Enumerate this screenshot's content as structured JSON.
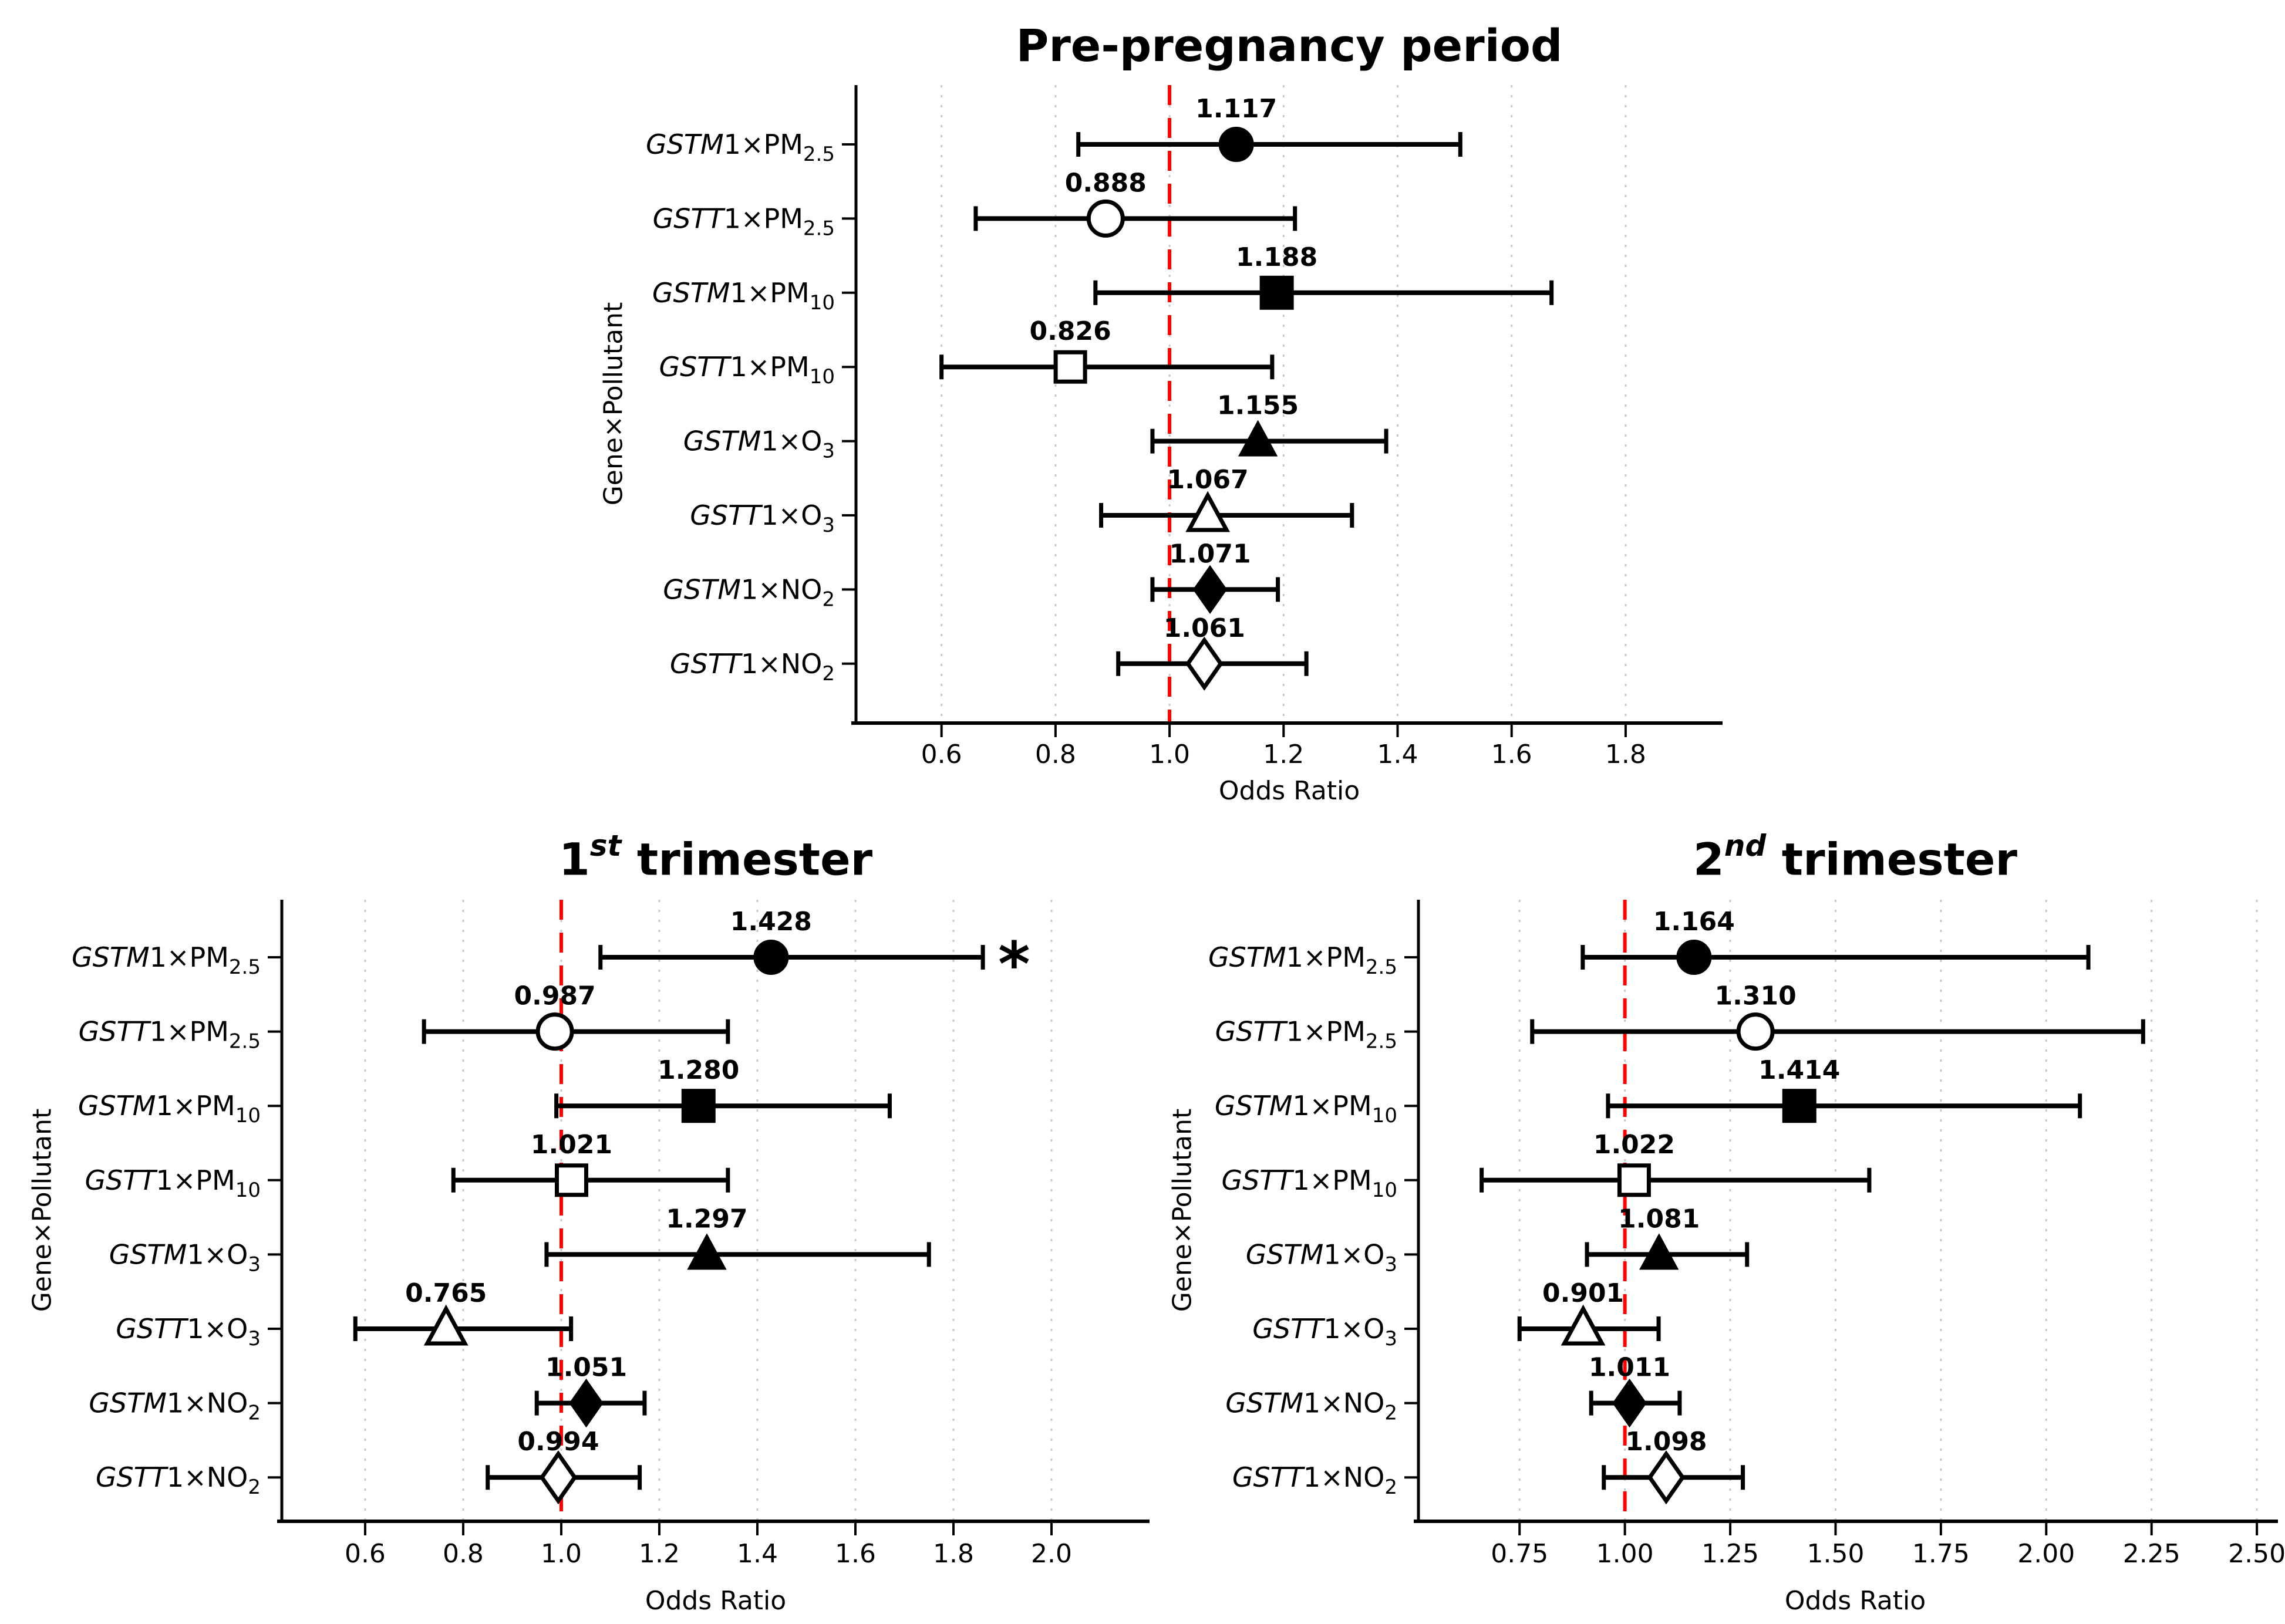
{
  "figure": {
    "background": "#ffffff",
    "text_color": "#000000",
    "accent_red": "#ff0000",
    "grid_color": "#c9c9c9",
    "marker_color": "#000000"
  },
  "row_labels": [
    {
      "it": "GSTM",
      "mid": "1×PM",
      "sub": "2.5"
    },
    {
      "it": "GSTT",
      "mid": "1×PM",
      "sub": "2.5"
    },
    {
      "it": "GSTM",
      "mid": "1×PM",
      "sub": "10"
    },
    {
      "it": "GSTT",
      "mid": "1×PM",
      "sub": "10"
    },
    {
      "it": "GSTM",
      "mid": "1×O",
      "sub": "3"
    },
    {
      "it": "GSTT",
      "mid": "1×O",
      "sub": "3"
    },
    {
      "it": "GSTM",
      "mid": "1×NO",
      "sub": "2"
    },
    {
      "it": "GSTT",
      "mid": "1×NO",
      "sub": "2"
    }
  ],
  "chart_data": [
    {
      "id": "pre-pregnancy",
      "type": "scatter",
      "subtype": "forest-plot",
      "title": {
        "num": "",
        "sup": "",
        "rest": "Pre-pregnancy period"
      },
      "xlabel": "Odds Ratio",
      "ylabel": "Gene×Pollutant",
      "xlim": [
        0.45,
        1.97
      ],
      "refline": 1.0,
      "grid": true,
      "xticks": [
        "0.6",
        "0.8",
        "1.0",
        "1.2",
        "1.4",
        "1.6",
        "1.8"
      ],
      "xtick_values": [
        0.6,
        0.8,
        1.0,
        1.2,
        1.4,
        1.6,
        1.8
      ],
      "categories": [
        "GSTM1×PM2.5",
        "GSTT1×PM2.5",
        "GSTM1×PM10",
        "GSTT1×PM10",
        "GSTM1×O3",
        "GSTT1×O3",
        "GSTM1×NO2",
        "GSTT1×NO2"
      ],
      "points": [
        {
          "or": 1.117,
          "label": "1.117",
          "ci": [
            0.84,
            1.51
          ],
          "marker": "circle",
          "filled": true,
          "sig": ""
        },
        {
          "or": 0.888,
          "label": "0.888",
          "ci": [
            0.66,
            1.22
          ],
          "marker": "circle",
          "filled": false,
          "sig": ""
        },
        {
          "or": 1.188,
          "label": "1.188",
          "ci": [
            0.87,
            1.67
          ],
          "marker": "square",
          "filled": true,
          "sig": ""
        },
        {
          "or": 0.826,
          "label": "0.826",
          "ci": [
            0.6,
            1.18
          ],
          "marker": "square",
          "filled": false,
          "sig": ""
        },
        {
          "or": 1.155,
          "label": "1.155",
          "ci": [
            0.97,
            1.38
          ],
          "marker": "triangle",
          "filled": true,
          "sig": ""
        },
        {
          "or": 1.067,
          "label": "1.067",
          "ci": [
            0.88,
            1.32
          ],
          "marker": "triangle",
          "filled": false,
          "sig": ""
        },
        {
          "or": 1.071,
          "label": "1.071",
          "ci": [
            0.97,
            1.19
          ],
          "marker": "diamond",
          "filled": true,
          "sig": ""
        },
        {
          "or": 1.061,
          "label": "1.061",
          "ci": [
            0.91,
            1.24
          ],
          "marker": "diamond",
          "filled": false,
          "sig": ""
        }
      ]
    },
    {
      "id": "first-trimester",
      "type": "scatter",
      "subtype": "forest-plot",
      "title": {
        "num": "1",
        "sup": "st",
        "rest": " trimester"
      },
      "xlabel": "Odds Ratio",
      "ylabel": "Gene×Pollutant",
      "xlim": [
        0.43,
        2.2
      ],
      "refline": 1.0,
      "grid": true,
      "xticks": [
        "0.6",
        "0.8",
        "1.0",
        "1.2",
        "1.4",
        "1.6",
        "1.8",
        "2.0"
      ],
      "xtick_values": [
        0.6,
        0.8,
        1.0,
        1.2,
        1.4,
        1.6,
        1.8,
        2.0
      ],
      "categories": [
        "GSTM1×PM2.5",
        "GSTT1×PM2.5",
        "GSTM1×PM10",
        "GSTT1×PM10",
        "GSTM1×O3",
        "GSTT1×O3",
        "GSTM1×NO2",
        "GSTT1×NO2"
      ],
      "points": [
        {
          "or": 1.428,
          "label": "1.428",
          "ci": [
            1.08,
            1.86
          ],
          "marker": "circle",
          "filled": true,
          "sig": "*"
        },
        {
          "or": 0.987,
          "label": "0.987",
          "ci": [
            0.72,
            1.34
          ],
          "marker": "circle",
          "filled": false,
          "sig": ""
        },
        {
          "or": 1.28,
          "label": "1.280",
          "ci": [
            0.99,
            1.67
          ],
          "marker": "square",
          "filled": true,
          "sig": ""
        },
        {
          "or": 1.021,
          "label": "1.021",
          "ci": [
            0.78,
            1.34
          ],
          "marker": "square",
          "filled": false,
          "sig": ""
        },
        {
          "or": 1.297,
          "label": "1.297",
          "ci": [
            0.97,
            1.75
          ],
          "marker": "triangle",
          "filled": true,
          "sig": ""
        },
        {
          "or": 0.765,
          "label": "0.765",
          "ci": [
            0.58,
            1.02
          ],
          "marker": "triangle",
          "filled": false,
          "sig": ""
        },
        {
          "or": 1.051,
          "label": "1.051",
          "ci": [
            0.95,
            1.17
          ],
          "marker": "diamond",
          "filled": true,
          "sig": ""
        },
        {
          "or": 0.994,
          "label": "0.994",
          "ci": [
            0.85,
            1.16
          ],
          "marker": "diamond",
          "filled": false,
          "sig": ""
        }
      ]
    },
    {
      "id": "second-trimester",
      "type": "scatter",
      "subtype": "forest-plot",
      "title": {
        "num": "2",
        "sup": "nd",
        "rest": " trimester"
      },
      "xlabel": "Odds Ratio",
      "ylabel": "Gene×Pollutant",
      "xlim": [
        0.51,
        2.55
      ],
      "refline": 1.0,
      "grid": true,
      "xticks": [
        "0.75",
        "1.00",
        "1.25",
        "1.50",
        "1.75",
        "2.00",
        "2.25",
        "2.50"
      ],
      "xtick_values": [
        0.75,
        1.0,
        1.25,
        1.5,
        1.75,
        2.0,
        2.25,
        2.5
      ],
      "categories": [
        "GSTM1×PM2.5",
        "GSTT1×PM2.5",
        "GSTM1×PM10",
        "GSTT1×PM10",
        "GSTM1×O3",
        "GSTT1×O3",
        "GSTM1×NO2",
        "GSTT1×NO2"
      ],
      "points": [
        {
          "or": 1.164,
          "label": "1.164",
          "ci": [
            0.9,
            2.1
          ],
          "marker": "circle",
          "filled": true,
          "sig": ""
        },
        {
          "or": 1.31,
          "label": "1.310",
          "ci": [
            0.78,
            2.23
          ],
          "marker": "circle",
          "filled": false,
          "sig": ""
        },
        {
          "or": 1.414,
          "label": "1.414",
          "ci": [
            0.96,
            2.08
          ],
          "marker": "square",
          "filled": true,
          "sig": ""
        },
        {
          "or": 1.022,
          "label": "1.022",
          "ci": [
            0.66,
            1.58
          ],
          "marker": "square",
          "filled": false,
          "sig": ""
        },
        {
          "or": 1.081,
          "label": "1.081",
          "ci": [
            0.91,
            1.29
          ],
          "marker": "triangle",
          "filled": true,
          "sig": ""
        },
        {
          "or": 0.901,
          "label": "0.901",
          "ci": [
            0.75,
            1.08
          ],
          "marker": "triangle",
          "filled": false,
          "sig": ""
        },
        {
          "or": 1.011,
          "label": "1.011",
          "ci": [
            0.92,
            1.13
          ],
          "marker": "diamond",
          "filled": true,
          "sig": ""
        },
        {
          "or": 1.098,
          "label": "1.098",
          "ci": [
            0.95,
            1.28
          ],
          "marker": "diamond",
          "filled": false,
          "sig": ""
        }
      ]
    }
  ]
}
